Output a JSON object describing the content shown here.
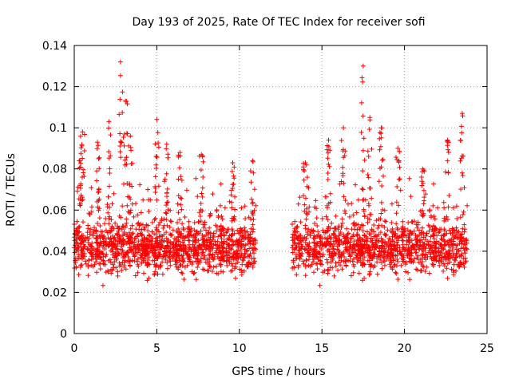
{
  "chart_data": {
    "type": "scatter",
    "title": "Day 193 of 2025, Rate Of TEC Index for receiver sofi",
    "xlabel": "GPS time / hours",
    "ylabel": "ROTI / TECUs",
    "xlim": [
      0,
      25
    ],
    "ylim": [
      0,
      0.14
    ],
    "xticks": [
      0,
      5,
      10,
      15,
      20,
      25
    ],
    "yticks": [
      0,
      0.02,
      0.04,
      0.06,
      0.08,
      0.1,
      0.12,
      0.14
    ],
    "xtick_labels": [
      "0",
      "5",
      "10",
      "15",
      "20",
      "25"
    ],
    "ytick_labels": [
      "0",
      "0.02",
      "0.04",
      "0.06",
      "0.08",
      "0.1",
      "0.12",
      "0.14"
    ],
    "grid": true,
    "marker": "+",
    "color": "#ff0000",
    "segments": [
      {
        "x_start": 0.0,
        "x_end": 11.0
      },
      {
        "x_start": 13.2,
        "x_end": 23.8
      }
    ],
    "peaks": [
      {
        "x": 0.3,
        "y": 0.084
      },
      {
        "x": 0.5,
        "y": 0.098
      },
      {
        "x": 1.4,
        "y": 0.093
      },
      {
        "x": 2.1,
        "y": 0.103
      },
      {
        "x": 2.8,
        "y": 0.132
      },
      {
        "x": 3.1,
        "y": 0.113
      },
      {
        "x": 3.4,
        "y": 0.096
      },
      {
        "x": 5.0,
        "y": 0.104
      },
      {
        "x": 5.6,
        "y": 0.092
      },
      {
        "x": 6.4,
        "y": 0.088
      },
      {
        "x": 7.7,
        "y": 0.087
      },
      {
        "x": 9.6,
        "y": 0.083
      },
      {
        "x": 10.8,
        "y": 0.084
      },
      {
        "x": 14.0,
        "y": 0.083
      },
      {
        "x": 15.4,
        "y": 0.094
      },
      {
        "x": 16.3,
        "y": 0.1
      },
      {
        "x": 17.5,
        "y": 0.13
      },
      {
        "x": 17.9,
        "y": 0.105
      },
      {
        "x": 18.6,
        "y": 0.1
      },
      {
        "x": 19.6,
        "y": 0.09
      },
      {
        "x": 21.1,
        "y": 0.08
      },
      {
        "x": 22.6,
        "y": 0.094
      },
      {
        "x": 23.5,
        "y": 0.107
      }
    ],
    "typical_range": [
      0.02,
      0.06
    ]
  }
}
